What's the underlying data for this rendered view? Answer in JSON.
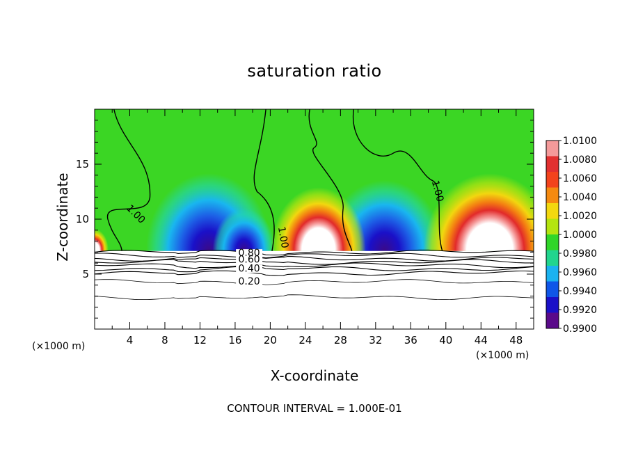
{
  "chart_data": {
    "type": "heatmap",
    "title": "saturation ratio",
    "xlabel": "X-coordinate",
    "ylabel": "Z-coordinate",
    "x_unit": "(×1000 m)",
    "y_unit": "(×1000 m)",
    "xlim": [
      0,
      50
    ],
    "ylim": [
      0,
      20
    ],
    "x_ticks": [
      4,
      8,
      12,
      16,
      20,
      24,
      28,
      32,
      36,
      40,
      44,
      48
    ],
    "y_ticks": [
      5,
      10,
      15
    ],
    "colorbar": {
      "ticks": [
        "1.0100",
        "1.0080",
        "1.0060",
        "1.0040",
        "1.0020",
        "1.0000",
        "0.9980",
        "0.9960",
        "0.9940",
        "0.9920",
        "0.9900"
      ],
      "colors": [
        "#f49a9a",
        "#e23030",
        "#f3431c",
        "#f58a10",
        "#f3d80f",
        "#b4e40f",
        "#2fd628",
        "#21d58e",
        "#1ab2f0",
        "#0f56e8",
        "#1a10c8",
        "#5a0a8a"
      ]
    },
    "contour_labels": [
      "1.00",
      "1.00",
      "1.00",
      "0.80",
      "0.60",
      "0.40",
      "0.20"
    ],
    "annotation": "CONTOUR INTERVAL = 1.000E-01"
  }
}
